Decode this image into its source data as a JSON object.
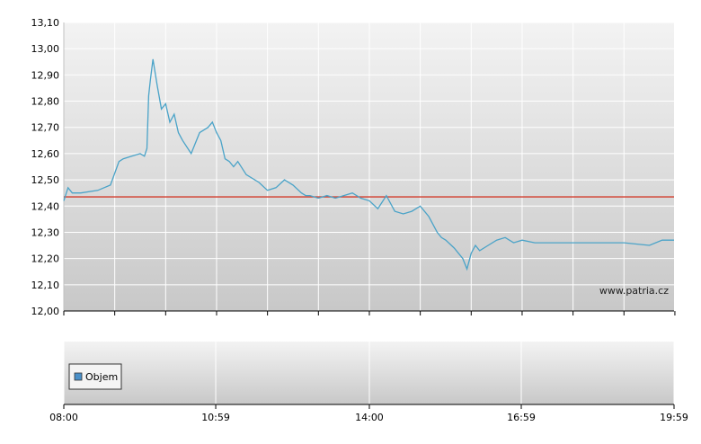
{
  "watermark": "www.patria.cz",
  "colors": {
    "price_line": "#4aa3c8",
    "reference_line": "#d23a2a",
    "grid": "#ffffff",
    "panel_top": "#f2f2f2",
    "panel_bottom": "#c9c9c9",
    "axis": "#000000",
    "legend_swatch": "#4a90c8"
  },
  "chart_data": [
    {
      "type": "line",
      "title": "",
      "xlabel": "",
      "ylabel": "",
      "ylim": [
        12.0,
        13.1
      ],
      "xlim": [
        "08:00",
        "19:59"
      ],
      "y_ticks": [
        "12,00",
        "12,10",
        "12,20",
        "12,30",
        "12,40",
        "12,50",
        "12,60",
        "12,70",
        "12,80",
        "12,90",
        "13,00",
        "13,10"
      ],
      "grid": true,
      "reference_line": 12.435,
      "series": [
        {
          "x": [
            "08:00",
            "08:05",
            "08:10",
            "08:20",
            "08:40",
            "08:55",
            "09:05",
            "09:10",
            "09:20",
            "09:30",
            "09:35",
            "09:38",
            "09:40",
            "09:42",
            "09:45",
            "09:50",
            "09:55",
            "10:00",
            "10:05",
            "10:10",
            "10:15",
            "10:20",
            "10:30",
            "10:40",
            "10:50",
            "10:55",
            "11:00",
            "11:05",
            "11:10",
            "11:15",
            "11:20",
            "11:25",
            "11:35",
            "11:50",
            "12:00",
            "12:10",
            "12:20",
            "12:30",
            "12:40",
            "12:45",
            "12:50",
            "13:00",
            "13:10",
            "13:20",
            "13:30",
            "13:40",
            "13:50",
            "14:00",
            "14:10",
            "14:20",
            "14:30",
            "14:40",
            "14:50",
            "15:00",
            "15:10",
            "15:20",
            "15:25",
            "15:30",
            "15:40",
            "15:50",
            "15:55",
            "16:00",
            "16:05",
            "16:10",
            "16:20",
            "16:30",
            "16:40",
            "16:50",
            "17:00",
            "17:15",
            "17:30",
            "18:00",
            "18:30",
            "19:00",
            "19:30",
            "19:45",
            "19:59"
          ],
          "y": [
            12.42,
            12.47,
            12.45,
            12.45,
            12.46,
            12.48,
            12.57,
            12.58,
            12.59,
            12.6,
            12.59,
            12.62,
            12.82,
            12.88,
            12.96,
            12.86,
            12.77,
            12.79,
            12.72,
            12.75,
            12.68,
            12.65,
            12.6,
            12.68,
            12.7,
            12.72,
            12.68,
            12.65,
            12.58,
            12.57,
            12.55,
            12.57,
            12.52,
            12.49,
            12.46,
            12.47,
            12.5,
            12.48,
            12.45,
            12.44,
            12.44,
            12.43,
            12.44,
            12.43,
            12.44,
            12.45,
            12.43,
            12.42,
            12.39,
            12.44,
            12.38,
            12.37,
            12.38,
            12.4,
            12.36,
            12.3,
            12.28,
            12.27,
            12.24,
            12.2,
            12.16,
            12.22,
            12.25,
            12.23,
            12.25,
            12.27,
            12.28,
            12.26,
            12.27,
            12.26,
            12.26,
            12.26,
            12.26,
            12.26,
            12.25,
            12.27,
            12.27
          ]
        }
      ]
    },
    {
      "type": "bar",
      "title": "",
      "x_ticks": [
        "08:00",
        "10:59",
        "14:00",
        "16:59",
        "19:59"
      ],
      "legend": {
        "placement": "left",
        "entries": [
          "Objem"
        ]
      },
      "series": [
        {
          "name": "Objem",
          "values": []
        }
      ]
    }
  ]
}
